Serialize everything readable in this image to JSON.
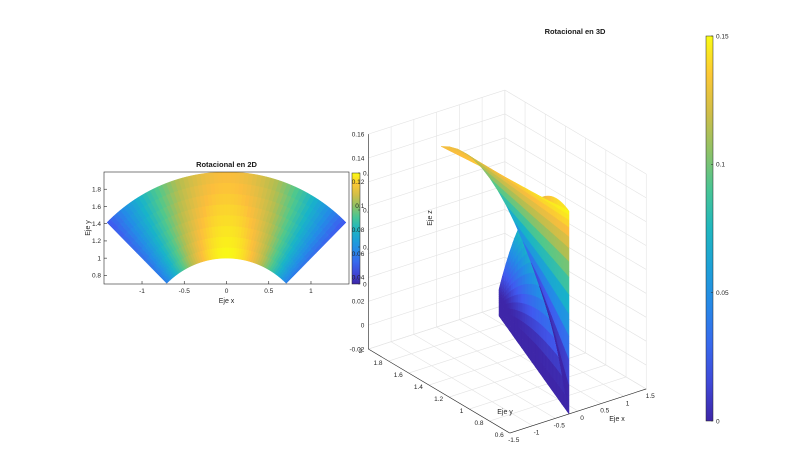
{
  "chart_data": [
    {
      "type": "heatmap",
      "title": "Rotacional en 2D",
      "xlabel": "Eje x",
      "ylabel": "Eje y",
      "xlim": [
        -1.45,
        1.45
      ],
      "ylim": [
        0.7,
        2.0
      ],
      "xticks": [
        "-1",
        "-0.5",
        "0",
        "0.5",
        "1"
      ],
      "yticks": [
        "0.8",
        "1",
        "1.2",
        "1.4",
        "1.6",
        "1.8"
      ],
      "colorbar": {
        "ticks": [
          "0",
          "0.05",
          "0.1",
          "0.15"
        ],
        "range": [
          0,
          0.15
        ]
      },
      "domain": {
        "shape": "annular sector",
        "inner_radius": 1.0,
        "outer_radius": 2.0,
        "angle_deg": [
          45,
          135
        ]
      },
      "colormap": "parula",
      "grid": false
    },
    {
      "type": "surface",
      "title": "Rotacional en 3D",
      "xlabel": "Eje x",
      "ylabel": "Eje y",
      "zlabel": "Eje z",
      "xticks": [
        "-1.5",
        "-1",
        "-0.5",
        "0",
        "0.5",
        "1",
        "1.5"
      ],
      "yticks": [
        "0.6",
        "0.8",
        "1",
        "1.2",
        "1.4",
        "1.6",
        "1.8",
        "2"
      ],
      "zticks": [
        "-0.02",
        "0",
        "0.02",
        "0.04",
        "0.06",
        "0.08",
        "0.1",
        "0.12",
        "0.14",
        "0.16"
      ],
      "zlim": [
        -0.02,
        0.16
      ],
      "colorbar": {
        "ticks": [
          "0",
          "0.05",
          "0.1",
          "0.15"
        ],
        "range": [
          0,
          0.15
        ]
      },
      "colormap": "parula",
      "grid": true
    }
  ]
}
